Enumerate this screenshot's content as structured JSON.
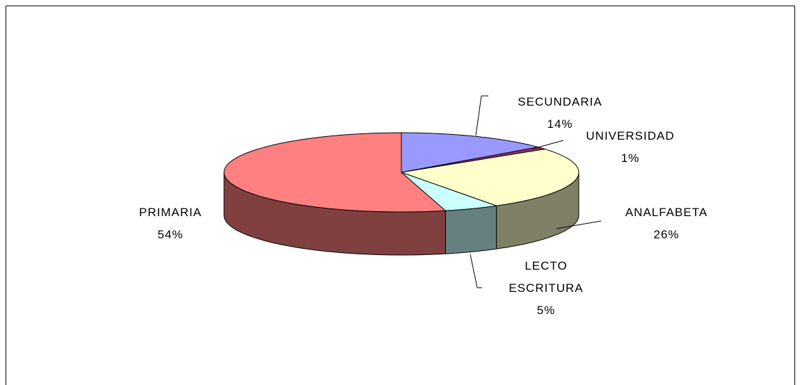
{
  "chart_data": {
    "type": "pie3d",
    "categories": [
      "SECUNDARIA",
      "UNIVERSIDAD",
      "ANALFABETA",
      "LECTO ESCRITURA",
      "PRIMARIA"
    ],
    "values": [
      14,
      1,
      26,
      5,
      54
    ],
    "value_labels": [
      "14%",
      "1%",
      "26%",
      "5%",
      "54%"
    ],
    "colors": [
      "#9999ff",
      "#993366",
      "#ffffcc",
      "#ccffff",
      "#ff8080"
    ]
  }
}
